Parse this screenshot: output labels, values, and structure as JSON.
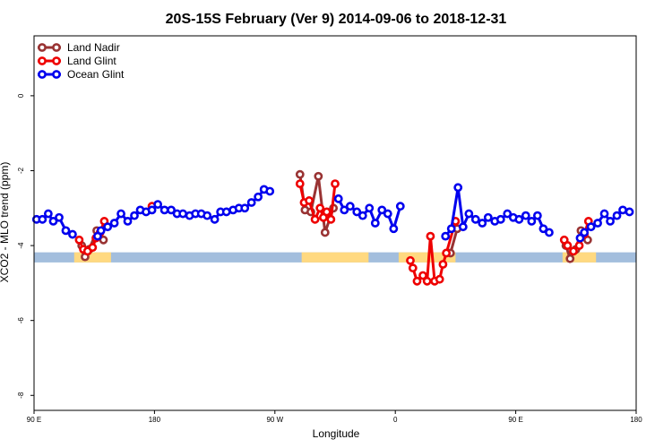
{
  "colors": {
    "land_nadir": "#993333",
    "land_glint": "#ee0000",
    "ocean_glint": "#0000ee",
    "land_band": "#ffd980",
    "ocean_band": "#a3bedd",
    "frame": "#000000"
  },
  "chart_data": {
    "type": "line",
    "title": "20S-15S February (Ver 9)   2014-09-06 to 2018-12-31",
    "xlabel": "Longitude",
    "ylabel": "XCO2 - MLO trend (ppm)",
    "xlim": [
      0,
      360
    ],
    "ylim": [
      -8.4,
      1.6
    ],
    "x_ticks": [
      {
        "value": 0,
        "label": "90 E"
      },
      {
        "value": 72,
        "label": "180"
      },
      {
        "value": 144,
        "label": "90 W"
      },
      {
        "value": 216,
        "label": "0"
      },
      {
        "value": 288,
        "label": "90 E"
      },
      {
        "value": 360,
        "label": "180"
      }
    ],
    "y_ticks": [
      {
        "value": 0,
        "label": "0"
      },
      {
        "value": -2,
        "label": "-2"
      },
      {
        "value": -4,
        "label": "-4"
      },
      {
        "value": -6,
        "label": "-6"
      },
      {
        "value": -8,
        "label": "-8"
      }
    ],
    "grid": false,
    "legend_position": "top-left",
    "surface_band": {
      "y_range": [
        -4.45,
        -4.18
      ],
      "land_segments": [
        [
          24,
          46
        ],
        [
          160,
          200
        ],
        [
          218,
          252
        ],
        [
          316,
          336
        ]
      ]
    },
    "series": [
      {
        "name": "Land Nadir",
        "color_key": "land_nadir",
        "segments": [
          [
            [
              28.5,
              -4.0
            ],
            [
              30.5,
              -4.3
            ],
            [
              33,
              -4.1
            ],
            [
              37.5,
              -3.6
            ],
            [
              41.5,
              -3.85
            ]
          ],
          [
            [
              159,
              -2.1
            ],
            [
              162,
              -3.05
            ],
            [
              165.5,
              -3.1
            ],
            [
              170,
              -2.15
            ],
            [
              174,
              -3.65
            ],
            [
              179,
              -3.0
            ]
          ],
          [
            [
              249,
              -4.2
            ],
            [
              253,
              -3.55
            ]
          ],
          [
            [
              318,
              -4.0
            ],
            [
              320.5,
              -4.35
            ],
            [
              324,
              -4.1
            ],
            [
              327,
              -3.6
            ],
            [
              331,
              -3.85
            ]
          ]
        ]
      },
      {
        "name": "Land Glint",
        "color_key": "land_glint",
        "segments": [
          [
            [
              27,
              -3.85
            ],
            [
              29.5,
              -4.1
            ],
            [
              32,
              -4.15
            ],
            [
              35,
              -4.05
            ],
            [
              37,
              -3.8
            ],
            [
              39.5,
              -3.65
            ],
            [
              42,
              -3.35
            ]
          ],
          [
            [
              70.5,
              -2.95
            ]
          ],
          [
            [
              159,
              -2.35
            ],
            [
              161.5,
              -2.85
            ],
            [
              164.5,
              -2.8
            ],
            [
              168,
              -3.3
            ],
            [
              171,
              -3.0
            ],
            [
              173,
              -3.25
            ],
            [
              175,
              -3.1
            ],
            [
              177.5,
              -3.3
            ],
            [
              180,
              -2.35
            ]
          ],
          [
            [
              225,
              -4.4
            ],
            [
              226.5,
              -4.6
            ],
            [
              229,
              -4.95
            ],
            [
              232.5,
              -4.8
            ],
            [
              235,
              -4.95
            ],
            [
              237,
              -3.75
            ],
            [
              239.5,
              -4.95
            ],
            [
              242.5,
              -4.9
            ],
            [
              244.5,
              -4.5
            ],
            [
              246.5,
              -4.2
            ],
            [
              252,
              -3.35
            ]
          ],
          [
            [
              317,
              -3.85
            ],
            [
              319,
              -4.0
            ],
            [
              322.5,
              -4.15
            ],
            [
              326,
              -4.0
            ],
            [
              329,
              -3.7
            ],
            [
              331.5,
              -3.35
            ]
          ]
        ]
      },
      {
        "name": "Ocean Glint",
        "color_key": "ocean_glint",
        "segments": [
          [
            [
              1.5,
              -3.3
            ],
            [
              5,
              -3.3
            ],
            [
              8.5,
              -3.15
            ],
            [
              11.5,
              -3.35
            ],
            [
              15,
              -3.25
            ],
            [
              19,
              -3.6
            ],
            [
              23,
              -3.7
            ]
          ],
          [
            [
              38,
              -3.75
            ],
            [
              40,
              -3.6
            ],
            [
              44,
              -3.5
            ],
            [
              48,
              -3.4
            ],
            [
              52,
              -3.15
            ],
            [
              56,
              -3.35
            ],
            [
              60,
              -3.2
            ],
            [
              63.5,
              -3.05
            ],
            [
              67,
              -3.1
            ],
            [
              70.5,
              -3.05
            ],
            [
              74,
              -2.9
            ],
            [
              78,
              -3.05
            ],
            [
              82,
              -3.05
            ],
            [
              85.5,
              -3.15
            ],
            [
              89,
              -3.15
            ],
            [
              93,
              -3.2
            ],
            [
              96.5,
              -3.15
            ],
            [
              100,
              -3.15
            ],
            [
              103.5,
              -3.2
            ],
            [
              108,
              -3.3
            ],
            [
              111.5,
              -3.1
            ],
            [
              115,
              -3.1
            ],
            [
              119,
              -3.05
            ],
            [
              122.5,
              -3.0
            ],
            [
              126,
              -3.0
            ],
            [
              130,
              -2.85
            ],
            [
              134,
              -2.7
            ],
            [
              137.5,
              -2.5
            ],
            [
              141,
              -2.55
            ]
          ],
          [
            [
              182,
              -2.75
            ],
            [
              185.5,
              -3.05
            ],
            [
              189,
              -2.95
            ],
            [
              193,
              -3.1
            ],
            [
              196.5,
              -3.2
            ],
            [
              200.5,
              -3.0
            ],
            [
              204,
              -3.4
            ],
            [
              208,
              -3.05
            ],
            [
              211.5,
              -3.15
            ],
            [
              215,
              -3.55
            ],
            [
              219,
              -2.95
            ]
          ],
          [
            [
              246,
              -3.75
            ],
            [
              249.5,
              -3.55
            ],
            [
              253.5,
              -2.45
            ],
            [
              256.5,
              -3.5
            ],
            [
              260,
              -3.15
            ],
            [
              264,
              -3.3
            ],
            [
              268,
              -3.4
            ],
            [
              271.5,
              -3.25
            ],
            [
              275.5,
              -3.35
            ],
            [
              279,
              -3.3
            ],
            [
              283,
              -3.15
            ],
            [
              286.5,
              -3.25
            ],
            [
              290,
              -3.3
            ],
            [
              294,
              -3.2
            ],
            [
              297.5,
              -3.35
            ],
            [
              301,
              -3.2
            ],
            [
              304.5,
              -3.55
            ],
            [
              308,
              -3.65
            ]
          ],
          [
            [
              326.5,
              -3.8
            ],
            [
              329,
              -3.65
            ],
            [
              333,
              -3.5
            ],
            [
              337,
              -3.4
            ],
            [
              341,
              -3.15
            ],
            [
              344.5,
              -3.35
            ],
            [
              348.5,
              -3.2
            ],
            [
              352,
              -3.05
            ],
            [
              356,
              -3.1
            ]
          ]
        ]
      }
    ]
  }
}
